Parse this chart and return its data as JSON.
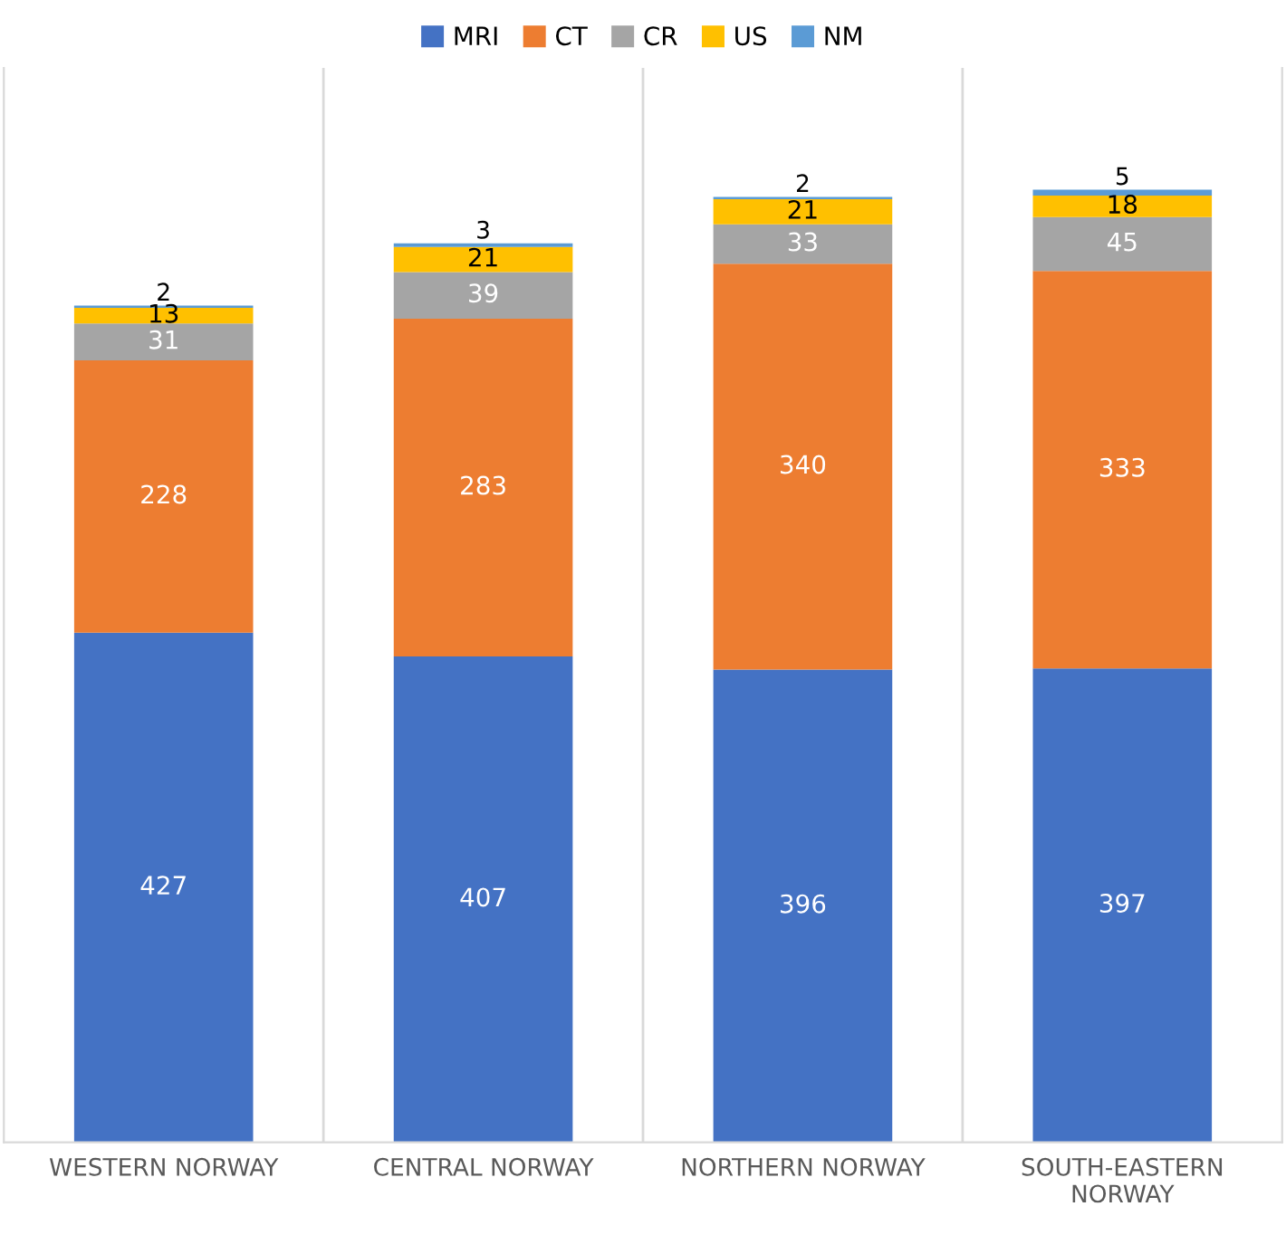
{
  "chart_data": {
    "type": "bar",
    "stacked": true,
    "categories": [
      "WESTERN NORWAY",
      "CENTRAL NORWAY",
      "NORTHERN NORWAY",
      "SOUTH-EASTERN\nNORWAY"
    ],
    "series": [
      {
        "name": "MRI",
        "color": "#4472c4",
        "values": [
          427,
          407,
          396,
          397
        ]
      },
      {
        "name": "CT",
        "color": "#ed7d31",
        "values": [
          228,
          283,
          340,
          333
        ]
      },
      {
        "name": "CR",
        "color": "#a5a5a5",
        "values": [
          31,
          39,
          33,
          45
        ]
      },
      {
        "name": "US",
        "color": "#ffc000",
        "values": [
          13,
          21,
          21,
          18
        ]
      },
      {
        "name": "NM",
        "color": "#5b9bd5",
        "values": [
          2,
          3,
          2,
          5
        ]
      }
    ],
    "ylim": [
      0,
      900
    ],
    "data_labels": true,
    "legend": "top",
    "grid": "x"
  }
}
